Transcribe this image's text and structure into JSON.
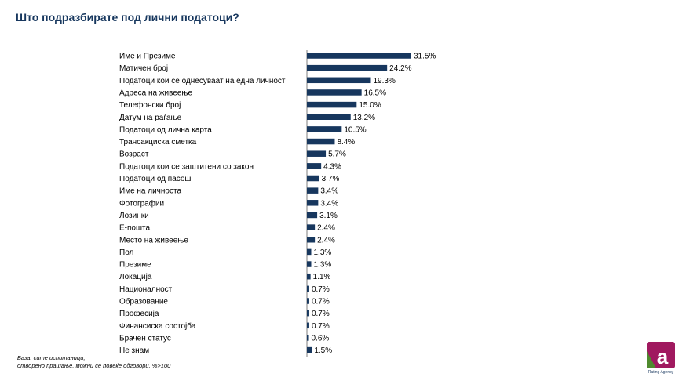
{
  "title": "Што подразбирате под лични податоци?",
  "footnote": {
    "line1": "База: сите испитаници;",
    "line2": "отворено прашање, можни се повеќе одговори, %>100"
  },
  "logo": {
    "text": "Rating Agency",
    "letter": "a"
  },
  "colors": {
    "bar": "#17375e",
    "title": "#17375e",
    "logo": "#a0195f"
  },
  "chart_data": {
    "type": "bar",
    "orientation": "horizontal",
    "categories": [
      "Име и Презиме",
      "Матичен број",
      "Податоци кои се однесуваат на една личност",
      "Адреса на живеење",
      "Телефонски број",
      "Датум на раѓање",
      "Податоци од лична карта",
      "Трансакциска сметка",
      "Возраст",
      "Податоци кои се заштитени со закон",
      "Податоци од пасош",
      "Име на личноста",
      "Фотографии",
      "Лозинки",
      "Е-пошта",
      "Место на живеење",
      "Пол",
      "Презиме",
      "Локација",
      "Националност",
      "Образование",
      "Професија",
      "Финансиска состојба",
      "Брачен статус",
      "Не знам"
    ],
    "values": [
      31.5,
      24.2,
      19.3,
      16.5,
      15.0,
      13.2,
      10.5,
      8.4,
      5.7,
      4.3,
      3.7,
      3.4,
      3.4,
      3.1,
      2.4,
      2.4,
      1.3,
      1.3,
      1.1,
      0.7,
      0.7,
      0.7,
      0.7,
      0.6,
      1.5
    ],
    "value_labels": [
      "31.5%",
      "24.2%",
      "19.3%",
      "16.5%",
      "15.0%",
      "13.2%",
      "10.5%",
      "8.4%",
      "5.7%",
      "4.3%",
      "3.7%",
      "3.4%",
      "3.4%",
      "3.1%",
      "2.4%",
      "2.4%",
      "1.3%",
      "1.3%",
      "1.1%",
      "0.7%",
      "0.7%",
      "0.7%",
      "0.7%",
      "0.6%",
      "1.5%"
    ],
    "unit": "%",
    "grid": false,
    "legend": "none"
  }
}
